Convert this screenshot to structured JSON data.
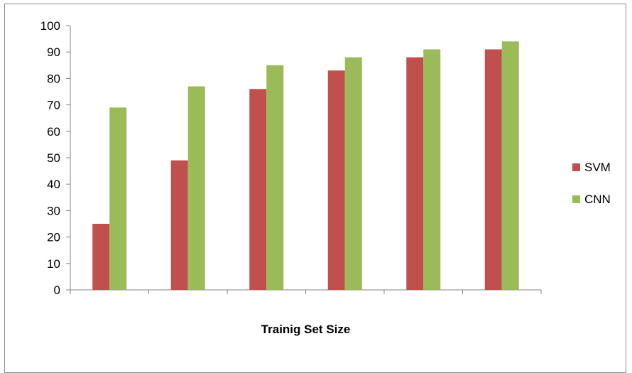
{
  "chart_data": {
    "type": "bar",
    "title": "",
    "xlabel": "Trainig Set Size",
    "ylabel": "",
    "ylim": [
      0,
      100
    ],
    "yticks": [
      0,
      10,
      20,
      30,
      40,
      50,
      60,
      70,
      80,
      90,
      100
    ],
    "grid": false,
    "legend_position": "right",
    "categories": [
      "",
      "",
      "",
      "",
      "",
      ""
    ],
    "series": [
      {
        "name": "SVM",
        "color": "#c0504d",
        "values": [
          25,
          49,
          76,
          83,
          88,
          91
        ]
      },
      {
        "name": "CNN",
        "color": "#9bbb59",
        "values": [
          69,
          77,
          85,
          88,
          91,
          94
        ]
      }
    ]
  }
}
